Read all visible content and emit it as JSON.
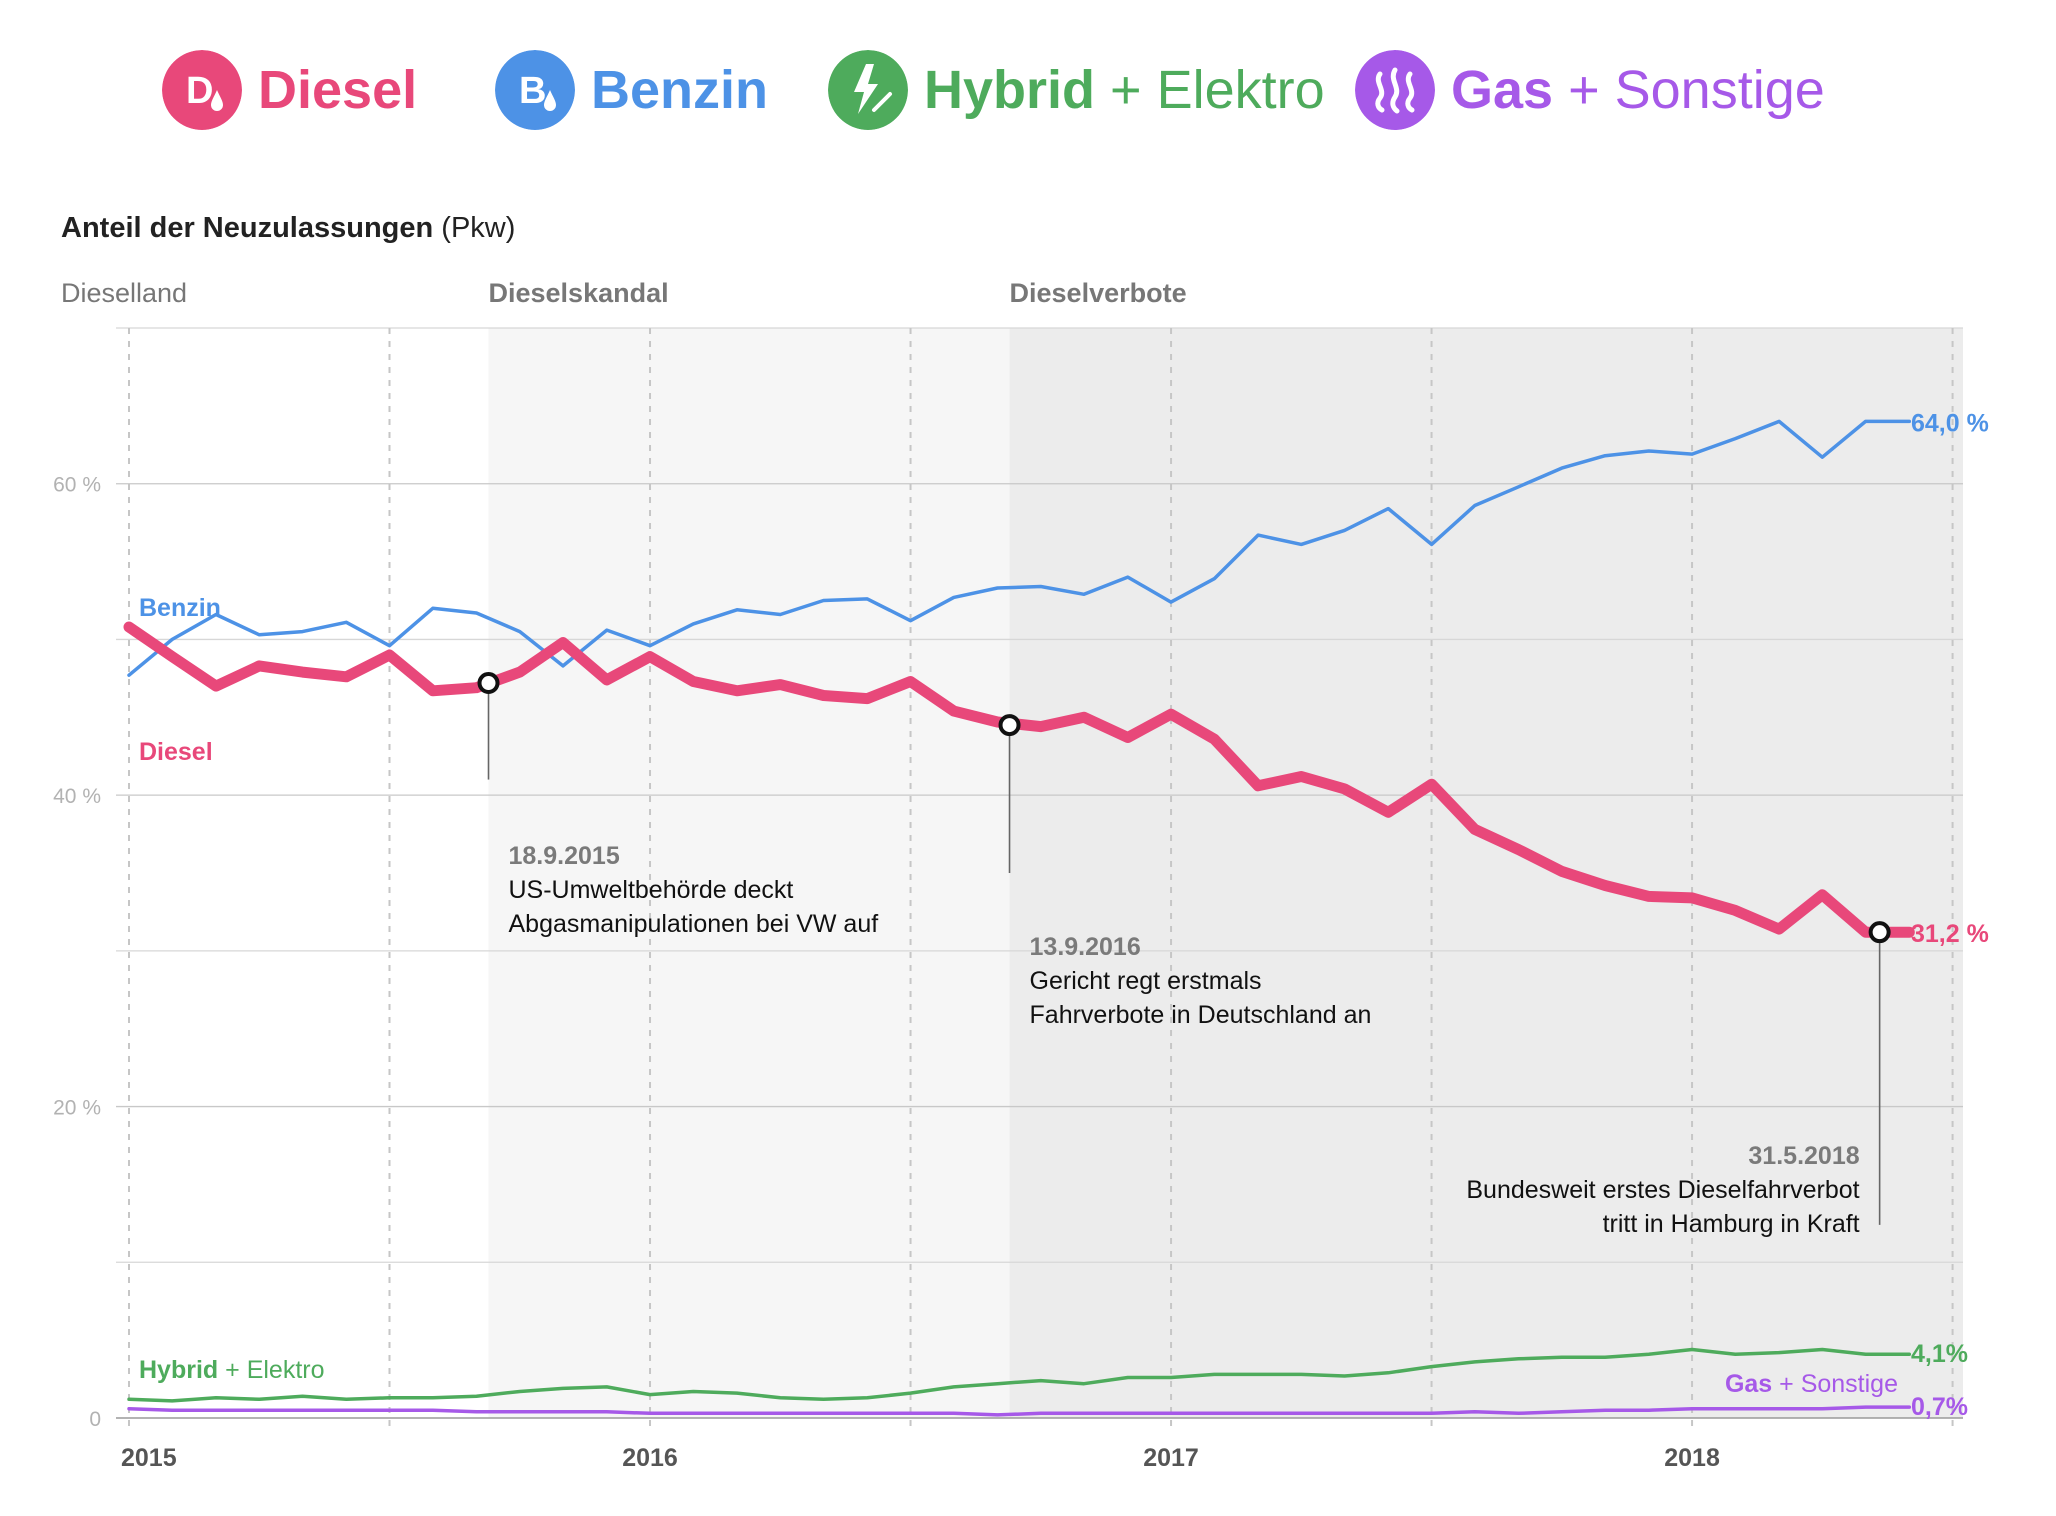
{
  "legend": {
    "items": [
      {
        "key": "diesel",
        "icon": "diesel-droplet-icon",
        "main": "Diesel",
        "sep": "",
        "extra": "",
        "color": "#e8487a"
      },
      {
        "key": "benzin",
        "icon": "benzin-droplet-icon",
        "main": "Benzin",
        "sep": "",
        "extra": "",
        "color": "#4d92e6"
      },
      {
        "key": "hybrid",
        "icon": "lightning-icon",
        "main": "Hybrid",
        "sep": " + ",
        "extra": "Elektro",
        "color": "#4eab5c"
      },
      {
        "key": "gas",
        "icon": "flame-icon",
        "main": "Gas",
        "sep": " + ",
        "extra": "Sonstige",
        "color": "#a659e8"
      }
    ]
  },
  "chart_title": {
    "strong": "Anteil der Neuzulassungen",
    "weak": " (Pkw)"
  },
  "chart_data": {
    "type": "line",
    "title": "Anteil der Neuzulassungen (Pkw)",
    "xlabel": "",
    "ylabel": "",
    "ylim": [
      0,
      70
    ],
    "xlim": [
      2015.0,
      2018.52
    ],
    "y_ticks": [
      {
        "value": 0,
        "label": "0"
      },
      {
        "value": 20,
        "label": "20 %"
      },
      {
        "value": 40,
        "label": "40 %"
      },
      {
        "value": 60,
        "label": "60 %"
      }
    ],
    "y_minor_gridlines": [
      10,
      30,
      50,
      70
    ],
    "x_ticks": [
      {
        "value": 2015,
        "label": "2015"
      },
      {
        "value": 2016,
        "label": "2016"
      },
      {
        "value": 2017,
        "label": "2017"
      },
      {
        "value": 2018,
        "label": "2018"
      }
    ],
    "x_minor_gridlines": [
      2015.5,
      2016.5,
      2017.5,
      2018.5
    ],
    "periods": [
      {
        "label": "Dieselland",
        "start": 2015.0,
        "end": 2015.69,
        "shade": "#ffffff",
        "label_color": "#777777",
        "bold": false
      },
      {
        "label": "Dieselskandal",
        "start": 2015.69,
        "end": 2016.69,
        "shade": "#f6f6f6",
        "label_color": "#777777",
        "bold": true
      },
      {
        "label": "Dieselverbote",
        "start": 2016.69,
        "end": 2018.52,
        "shade": "#ececec",
        "label_color": "#777777",
        "bold": true
      }
    ],
    "x": [
      2015.0,
      2015.083,
      2015.167,
      2015.25,
      2015.333,
      2015.417,
      2015.5,
      2015.583,
      2015.667,
      2015.75,
      2015.833,
      2015.917,
      2016.0,
      2016.083,
      2016.167,
      2016.25,
      2016.333,
      2016.417,
      2016.5,
      2016.583,
      2016.667,
      2016.75,
      2016.833,
      2016.917,
      2017.0,
      2017.083,
      2017.167,
      2017.25,
      2017.333,
      2017.417,
      2017.5,
      2017.583,
      2017.667,
      2017.75,
      2017.833,
      2017.917,
      2018.0,
      2018.083,
      2018.167,
      2018.25,
      2018.333,
      2018.417
    ],
    "series": [
      {
        "key": "benzin",
        "name": "Benzin",
        "label": "Benzin",
        "color": "#4d92e6",
        "stroke_width": 3.5,
        "values": [
          47.7,
          50.0,
          51.6,
          50.3,
          50.5,
          51.1,
          49.6,
          52.0,
          51.7,
          50.5,
          48.3,
          50.6,
          49.6,
          51.0,
          51.9,
          51.6,
          52.5,
          52.6,
          51.2,
          52.7,
          53.3,
          53.4,
          52.9,
          54.0,
          52.4,
          53.9,
          56.7,
          56.1,
          57.0,
          58.4,
          56.1,
          58.6,
          59.8,
          61.0,
          61.8,
          62.1,
          61.9,
          62.9,
          64.0,
          61.7,
          64.0,
          64.0
        ],
        "end_label": "64,0 %"
      },
      {
        "key": "diesel",
        "name": "Diesel",
        "label": "Diesel",
        "color": "#e8487a",
        "stroke_width": 11,
        "values": [
          50.8,
          48.9,
          47.0,
          48.3,
          47.9,
          47.6,
          49.0,
          46.7,
          46.9,
          47.9,
          49.8,
          47.4,
          48.9,
          47.3,
          46.7,
          47.1,
          46.4,
          46.2,
          47.3,
          45.4,
          44.7,
          44.4,
          45.0,
          43.7,
          45.2,
          43.6,
          40.6,
          41.2,
          40.4,
          38.9,
          40.7,
          37.8,
          36.5,
          35.1,
          34.2,
          33.5,
          33.4,
          32.6,
          31.4,
          33.6,
          31.2,
          31.2
        ],
        "end_label": "31,2 %"
      },
      {
        "key": "hybrid",
        "name": "Hybrid + Elektro",
        "label_main": "Hybrid",
        "label_sep": " + ",
        "label_extra": "Elektro",
        "color": "#4eab5c",
        "stroke_width": 3.5,
        "values": [
          1.2,
          1.1,
          1.3,
          1.2,
          1.4,
          1.2,
          1.3,
          1.3,
          1.4,
          1.7,
          1.9,
          2.0,
          1.5,
          1.7,
          1.6,
          1.3,
          1.2,
          1.3,
          1.6,
          2.0,
          2.2,
          2.4,
          2.2,
          2.6,
          2.6,
          2.8,
          2.8,
          2.8,
          2.7,
          2.9,
          3.3,
          3.6,
          3.8,
          3.9,
          3.9,
          4.1,
          4.4,
          4.1,
          4.2,
          4.4,
          4.1,
          4.1
        ],
        "end_label": "4,1%"
      },
      {
        "key": "gas",
        "name": "Gas + Sonstige",
        "label_main": "Gas",
        "label_sep": " + ",
        "label_extra": "Sonstige",
        "color": "#a659e8",
        "stroke_width": 3.5,
        "values": [
          0.6,
          0.5,
          0.5,
          0.5,
          0.5,
          0.5,
          0.5,
          0.5,
          0.4,
          0.4,
          0.4,
          0.4,
          0.3,
          0.3,
          0.3,
          0.3,
          0.3,
          0.3,
          0.3,
          0.3,
          0.2,
          0.3,
          0.3,
          0.3,
          0.3,
          0.3,
          0.3,
          0.3,
          0.3,
          0.3,
          0.3,
          0.4,
          0.3,
          0.4,
          0.5,
          0.5,
          0.6,
          0.6,
          0.6,
          0.6,
          0.7,
          0.7
        ],
        "end_label": "0,7%"
      }
    ],
    "annotations": [
      {
        "date": "18.9.2015",
        "x": 2015.69,
        "y": 47.2,
        "lines": [
          "US-Umweltbehörde deckt",
          "Abgasmanipulationen bei VW auf"
        ],
        "align": "left",
        "anchor_y": 41.0
      },
      {
        "date": "13.9.2016",
        "x": 2016.69,
        "y": 44.5,
        "lines": [
          "Gericht regt erstmals",
          "Fahrverbote in Deutschland an"
        ],
        "align": "left",
        "anchor_y": 35.0
      },
      {
        "date": "31.5.2018",
        "x": 2018.36,
        "y": 31.2,
        "lines": [
          "Bundesweit erstes Dieselfahrverbot",
          "tritt in Hamburg in Kraft"
        ],
        "align": "right",
        "anchor_y": 12.4
      }
    ]
  }
}
